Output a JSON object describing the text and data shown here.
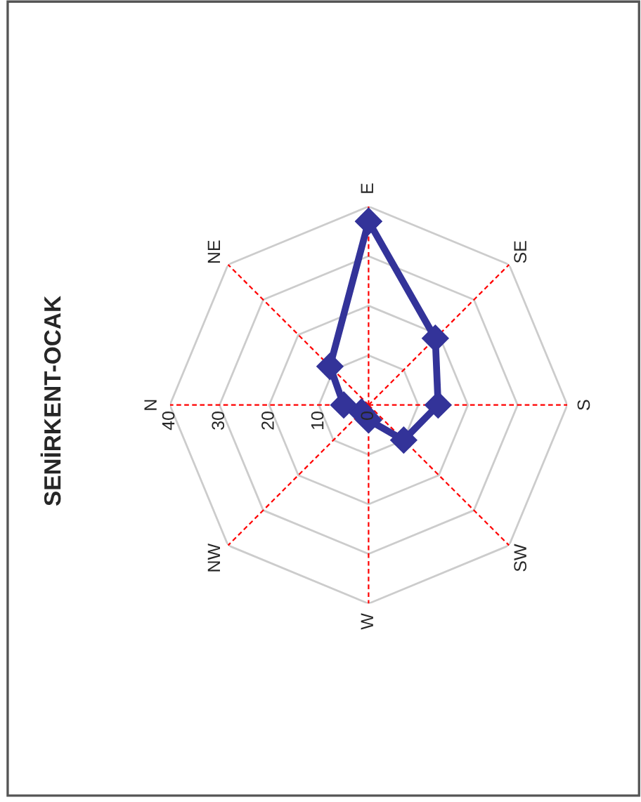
{
  "chart_data": {
    "type": "radar",
    "title": "SENİRKENT-OCAK",
    "categories": [
      "E",
      "SE",
      "S",
      "SW",
      "W",
      "NW",
      "N",
      "NE"
    ],
    "series": [
      {
        "color": "#333399",
        "values": [
          37,
          19,
          14,
          10,
          3,
          2,
          5,
          11
        ]
      }
    ],
    "ylim": [
      0,
      40
    ],
    "yticks": [
      0,
      10,
      20,
      30,
      40
    ],
    "grid": true,
    "marker": "diamond",
    "line_style": "solid"
  }
}
